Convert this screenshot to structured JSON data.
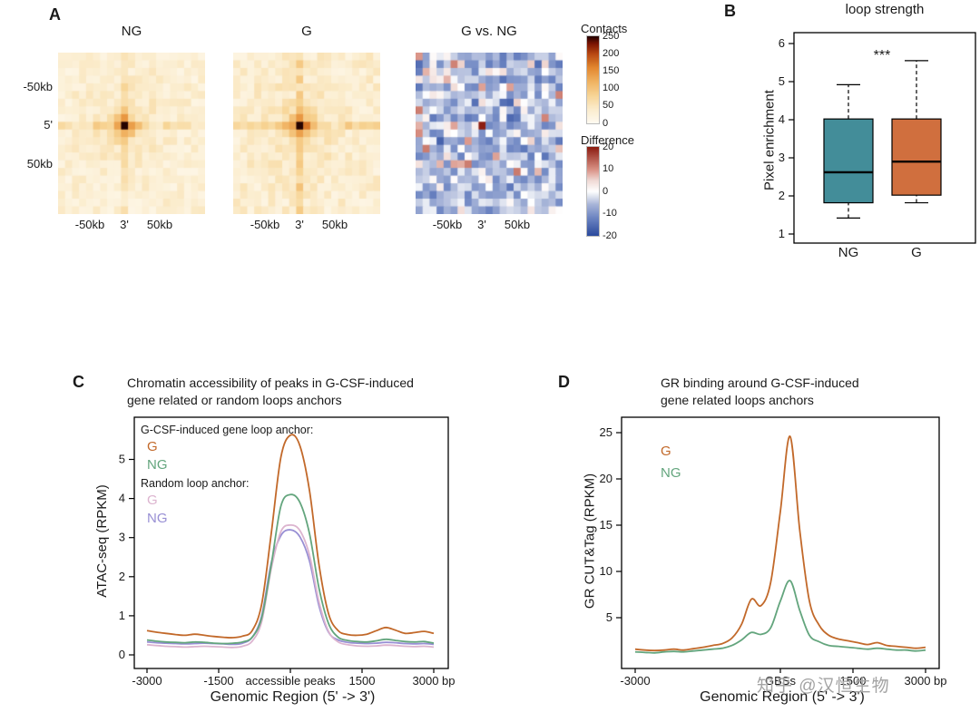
{
  "figure": {
    "panels": {
      "a": "A",
      "b": "B",
      "c": "C",
      "d": "D"
    },
    "watermark": {
      "text": "知乎 @汉恒生物",
      "color": "#a3a3a3"
    }
  },
  "chart_data": [
    {
      "type": "heatmap",
      "panel": "A",
      "grid": 21,
      "x_tick_labels": [
        "-50kb",
        "3'",
        "50kb"
      ],
      "y_tick_labels": [
        "-50kb",
        "5'",
        "50kb"
      ],
      "maps": [
        {
          "title": "NG",
          "kind": "contacts",
          "seed": 11,
          "base": 30,
          "noise": 18,
          "cross": 26,
          "halo": 80,
          "peak": 250
        },
        {
          "title": "G",
          "kind": "contacts",
          "seed": 23,
          "base": 34,
          "noise": 20,
          "cross": 34,
          "halo": 95,
          "peak": 250
        },
        {
          "title": "G vs. NG",
          "kind": "difference",
          "seed": 37,
          "mean": -6,
          "noise": 7,
          "center_value": 20
        }
      ],
      "colorbars": [
        {
          "title": "Contacts",
          "ticks": [
            "250",
            "200",
            "150",
            "100",
            "50",
            "0"
          ],
          "domain": [
            0,
            250
          ],
          "stops": [
            [
              0,
              "#fefaf0"
            ],
            [
              40,
              "#fbeccc"
            ],
            [
              80,
              "#f7d494"
            ],
            [
              120,
              "#f0b261"
            ],
            [
              160,
              "#e3872f"
            ],
            [
              200,
              "#b84812"
            ],
            [
              230,
              "#7a1303"
            ],
            [
              250,
              "#260300"
            ]
          ]
        },
        {
          "title": "Difference",
          "ticks": [
            "20",
            "10",
            "0",
            "-10",
            "-20"
          ],
          "domain": [
            -20,
            20
          ],
          "stops": [
            [
              -20,
              "#2c4b9e"
            ],
            [
              -12,
              "#6d85c2"
            ],
            [
              -6,
              "#a7b4d8"
            ],
            [
              -2,
              "#e3e7f1"
            ],
            [
              0,
              "#ffffff"
            ],
            [
              5,
              "#f0d9d4"
            ],
            [
              10,
              "#d99184"
            ],
            [
              20,
              "#8c1d12"
            ]
          ]
        }
      ]
    },
    {
      "type": "box",
      "panel": "B",
      "title": "loop strength",
      "ylabel": "Pixel enrichment",
      "ylim": [
        1,
        6
      ],
      "yticks": [
        1,
        2,
        3,
        4,
        5,
        6
      ],
      "significance": "***",
      "boxes": [
        {
          "label": "NG",
          "color": "#438d99",
          "whisker_low": 1.42,
          "q1": 1.82,
          "median": 2.62,
          "q3": 4.02,
          "whisker_high": 4.92
        },
        {
          "label": "G",
          "color": "#d06f3e",
          "whisker_low": 1.82,
          "q1": 2.02,
          "median": 2.9,
          "q3": 4.02,
          "whisker_high": 5.55
        }
      ]
    },
    {
      "type": "line",
      "panel": "C",
      "title_lines": [
        "Chromatin accessibility of peaks in G-CSF-induced",
        "gene related or random loops anchors"
      ],
      "ylabel": "ATAC-seq (RPKM)",
      "xlabel": "Genomic Region (5' -> 3')",
      "x_range": [
        -3000,
        3000
      ],
      "yticks": [
        0,
        1,
        2,
        3,
        4,
        5
      ],
      "x_tick_positions": [
        -3000,
        -1500,
        0,
        1500,
        3000
      ],
      "x_tick_labels": [
        "-3000",
        "-1500",
        "accessible peaks",
        "1500",
        "3000 bp"
      ],
      "legend": {
        "group1_label": "G-CSF-induced gene loop anchor:",
        "group2_label": "Random loop anchor:",
        "entries": [
          {
            "label": "G",
            "color": "#c2692a"
          },
          {
            "label": "NG",
            "color": "#63a57d"
          },
          {
            "label": "G",
            "color": "#dcb4cf"
          },
          {
            "label": "NG",
            "color": "#988fd4"
          }
        ]
      },
      "x": [
        -3000,
        -2800,
        -2600,
        -2400,
        -2200,
        -2000,
        -1800,
        -1600,
        -1400,
        -1200,
        -1000,
        -800,
        -600,
        -400,
        -200,
        0,
        200,
        400,
        600,
        800,
        1000,
        1200,
        1400,
        1600,
        1800,
        2000,
        2200,
        2400,
        2600,
        2800,
        3000
      ],
      "series": [
        {
          "name": "G-CSF-induced gene loop anchor G",
          "color": "#c2692a",
          "values": [
            0.62,
            0.58,
            0.55,
            0.52,
            0.5,
            0.53,
            0.5,
            0.47,
            0.45,
            0.44,
            0.48,
            0.62,
            1.3,
            3.1,
            5.05,
            5.62,
            5.35,
            4.2,
            2.3,
            1.05,
            0.62,
            0.52,
            0.5,
            0.53,
            0.62,
            0.7,
            0.63,
            0.55,
            0.57,
            0.6,
            0.55
          ]
        },
        {
          "name": "G-CSF-induced gene loop anchor NG",
          "color": "#63a57d",
          "values": [
            0.38,
            0.35,
            0.33,
            0.32,
            0.31,
            0.33,
            0.32,
            0.3,
            0.29,
            0.3,
            0.33,
            0.45,
            0.95,
            2.3,
            3.8,
            4.1,
            3.9,
            3.1,
            1.7,
            0.8,
            0.45,
            0.37,
            0.34,
            0.33,
            0.36,
            0.4,
            0.37,
            0.34,
            0.33,
            0.34,
            0.3
          ]
        },
        {
          "name": "Random loop anchor G",
          "color": "#dcb4cf",
          "values": [
            0.26,
            0.24,
            0.22,
            0.21,
            0.2,
            0.21,
            0.22,
            0.21,
            0.2,
            0.19,
            0.22,
            0.35,
            0.85,
            2.2,
            3.15,
            3.32,
            3.18,
            2.55,
            1.35,
            0.6,
            0.33,
            0.26,
            0.23,
            0.22,
            0.23,
            0.25,
            0.24,
            0.22,
            0.21,
            0.22,
            0.2
          ]
        },
        {
          "name": "Random loop anchor NG",
          "color": "#988fd4",
          "values": [
            0.33,
            0.31,
            0.3,
            0.29,
            0.28,
            0.29,
            0.3,
            0.29,
            0.28,
            0.27,
            0.3,
            0.45,
            1.0,
            2.35,
            3.05,
            3.2,
            3.02,
            2.4,
            1.25,
            0.58,
            0.38,
            0.32,
            0.3,
            0.29,
            0.3,
            0.32,
            0.31,
            0.29,
            0.28,
            0.29,
            0.27
          ]
        }
      ]
    },
    {
      "type": "line",
      "panel": "D",
      "title_lines": [
        "GR binding around G-CSF-induced",
        "gene related loops anchors"
      ],
      "ylabel": "GR CUT&Tag (RPKM)",
      "xlabel": "Genomic Region (5' -> 3')",
      "x_range": [
        -3000,
        3000
      ],
      "yticks": [
        5,
        10,
        15,
        20,
        25
      ],
      "x_tick_positions": [
        -3000,
        0,
        1500,
        3000
      ],
      "x_tick_labels": [
        "-3000",
        "GBSs",
        "1500",
        "3000 bp"
      ],
      "legend": {
        "entries": [
          {
            "label": "G",
            "color": "#c2692a"
          },
          {
            "label": "NG",
            "color": "#63a57d"
          }
        ]
      },
      "x": [
        -3000,
        -2800,
        -2600,
        -2400,
        -2200,
        -2000,
        -1800,
        -1600,
        -1400,
        -1200,
        -1000,
        -800,
        -600,
        -400,
        -200,
        0,
        200,
        400,
        600,
        800,
        1000,
        1200,
        1400,
        1600,
        1800,
        2000,
        2200,
        2400,
        2600,
        2800,
        3000
      ],
      "series": [
        {
          "name": "G",
          "color": "#c2692a",
          "values": [
            1.6,
            1.5,
            1.45,
            1.5,
            1.6,
            1.5,
            1.65,
            1.8,
            2.0,
            2.2,
            2.8,
            4.3,
            7.0,
            6.3,
            8.8,
            16.5,
            24.6,
            14.5,
            6.8,
            4.2,
            3.1,
            2.7,
            2.5,
            2.3,
            2.1,
            2.3,
            2.0,
            1.9,
            1.8,
            1.7,
            1.8
          ]
        },
        {
          "name": "NG",
          "color": "#63a57d",
          "values": [
            1.3,
            1.25,
            1.2,
            1.3,
            1.35,
            1.3,
            1.4,
            1.5,
            1.6,
            1.7,
            2.0,
            2.6,
            3.4,
            3.2,
            3.9,
            6.8,
            9.0,
            5.8,
            3.1,
            2.4,
            2.0,
            1.9,
            1.8,
            1.7,
            1.6,
            1.7,
            1.6,
            1.5,
            1.5,
            1.4,
            1.5
          ]
        }
      ]
    }
  ]
}
